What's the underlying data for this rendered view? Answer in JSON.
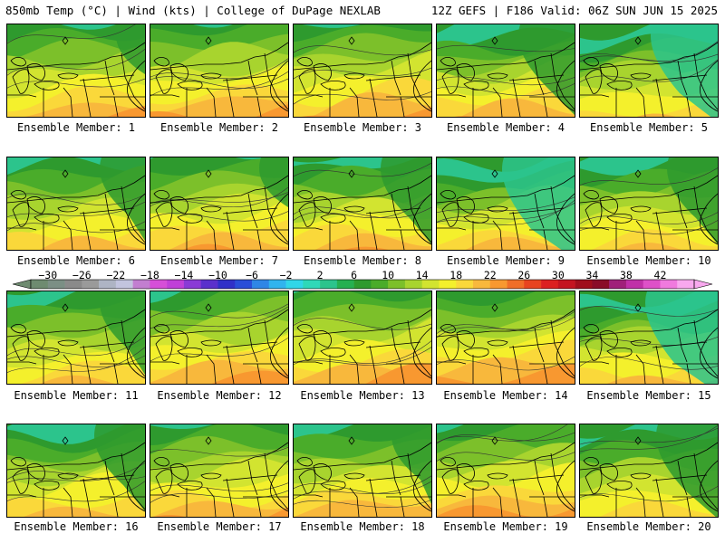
{
  "header": {
    "title": "850mb Temp (°C) | Wind (kts) | College of DuPage NEXLAB",
    "run_info": "12Z GEFS | F186 Valid: 06Z SUN JUN 15 2025"
  },
  "colorbar": {
    "labels": [
      "−30",
      "−26",
      "−22",
      "−18",
      "−14",
      "−10",
      "−6",
      "−2",
      "2",
      "6",
      "10",
      "14",
      "18",
      "22",
      "26",
      "30",
      "34",
      "38",
      "42"
    ],
    "colors": [
      "#6e8b70",
      "#7b8f85",
      "#8a8a8a",
      "#9a9a9a",
      "#aeb4c4",
      "#c2c4de",
      "#c27ed0",
      "#d64fd8",
      "#c040d8",
      "#8a3ad6",
      "#5a30cc",
      "#3030c8",
      "#2a4ed8",
      "#2f86e6",
      "#30b4ee",
      "#30d6e8",
      "#2fd8b8",
      "#2cc48c",
      "#26b050",
      "#2e9a2e",
      "#4aac2a",
      "#7cc02a",
      "#a8d42e",
      "#d2e430",
      "#f4f02c",
      "#fad83a",
      "#f8b83c",
      "#f89830",
      "#f06e28",
      "#e84420",
      "#dc2020",
      "#c41420",
      "#a00e1c",
      "#8a0c28",
      "#a0207a",
      "#c030a8",
      "#de50c8",
      "#f07ade",
      "#f8a8ee"
    ]
  },
  "members": [
    {
      "label": "Ensemble Member: 1",
      "warm": 1.0,
      "cool": 0.5
    },
    {
      "label": "Ensemble Member: 2",
      "warm": 1.2,
      "cool": 0.3
    },
    {
      "label": "Ensemble Member: 3",
      "warm": 1.1,
      "cool": 0.4
    },
    {
      "label": "Ensemble Member: 4",
      "warm": 1.0,
      "cool": 1.0
    },
    {
      "label": "Ensemble Member: 5",
      "warm": 0.3,
      "cool": 1.2
    },
    {
      "label": "Ensemble Member: 6",
      "warm": 0.7,
      "cool": 0.8
    },
    {
      "label": "Ensemble Member: 7",
      "warm": 1.0,
      "cool": 0.5
    },
    {
      "label": "Ensemble Member: 8",
      "warm": 0.9,
      "cool": 0.9
    },
    {
      "label": "Ensemble Member: 9",
      "warm": 0.7,
      "cool": 1.3
    },
    {
      "label": "Ensemble Member: 10",
      "warm": 0.6,
      "cool": 0.9
    },
    {
      "label": "Ensemble Member: 11",
      "warm": 0.6,
      "cool": 0.8
    },
    {
      "label": "Ensemble Member: 12",
      "warm": 1.2,
      "cool": 0.4
    },
    {
      "label": "Ensemble Member: 13",
      "warm": 1.2,
      "cool": 0.3
    },
    {
      "label": "Ensemble Member: 14",
      "warm": 1.4,
      "cool": 0.3
    },
    {
      "label": "Ensemble Member: 15",
      "warm": 0.6,
      "cool": 1.3
    },
    {
      "label": "Ensemble Member: 16",
      "warm": 0.8,
      "cool": 0.9
    },
    {
      "label": "Ensemble Member: 17",
      "warm": 1.0,
      "cool": 0.4
    },
    {
      "label": "Ensemble Member: 18",
      "warm": 1.0,
      "cool": 0.7
    },
    {
      "label": "Ensemble Member: 19",
      "warm": 1.3,
      "cool": 0.4
    },
    {
      "label": "Ensemble Member: 20",
      "warm": 0.4,
      "cool": 1.1
    }
  ]
}
